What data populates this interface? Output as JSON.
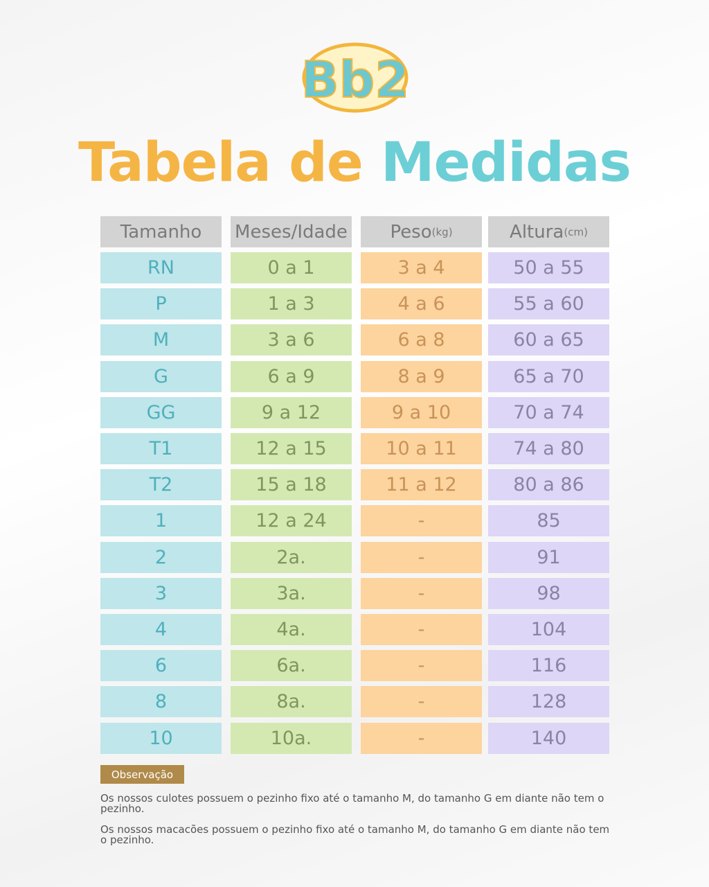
{
  "header": {
    "logo": "Bb2",
    "title": [
      "Tabela",
      "de",
      "Medidas"
    ]
  },
  "table": {
    "columns": [
      {
        "text": "Tamanho"
      },
      {
        "text": "Meses/Idade"
      },
      {
        "text": "Peso",
        "unit": "(kg)"
      },
      {
        "text": "Altura",
        "unit": "(cm)"
      }
    ],
    "rows": [
      [
        "RN",
        "0 a 1",
        "3 a 4",
        "50 a 55"
      ],
      [
        "P",
        "1 a 3",
        "4 a 6",
        "55 a 60"
      ],
      [
        "M",
        "3 a 6",
        "6 a 8",
        "60 a 65"
      ],
      [
        "G",
        "6 a 9",
        "8 a 9",
        "65 a 70"
      ],
      [
        "GG",
        "9 a 12",
        "9 a 10",
        "70 a 74"
      ],
      [
        "T1",
        "12 a 15",
        "10 a 11",
        "74 a 80"
      ],
      [
        "T2",
        "15 a 18",
        "11 a 12",
        "80 a 86"
      ],
      [
        "1",
        "12 a 24",
        "-",
        "85"
      ],
      [
        "2",
        "2a.",
        "-",
        "91"
      ],
      [
        "3",
        "3a.",
        "-",
        "98"
      ],
      [
        "4",
        "4a.",
        "-",
        "104"
      ],
      [
        "6",
        "6a.",
        "-",
        "116"
      ],
      [
        "8",
        "8a.",
        "-",
        "128"
      ],
      [
        "10",
        "10a.",
        "-",
        "140"
      ]
    ]
  },
  "notes": {
    "label": "Observação",
    "items": [
      "Os nossos culotes possuem o pezinho fixo até o tamanho M, do tamanho G em diante não tem o pezinho.",
      "Os nossos macacões possuem o pezinho fixo até o tamanho M, do tamanho G em diante não tem o pezinho."
    ]
  }
}
